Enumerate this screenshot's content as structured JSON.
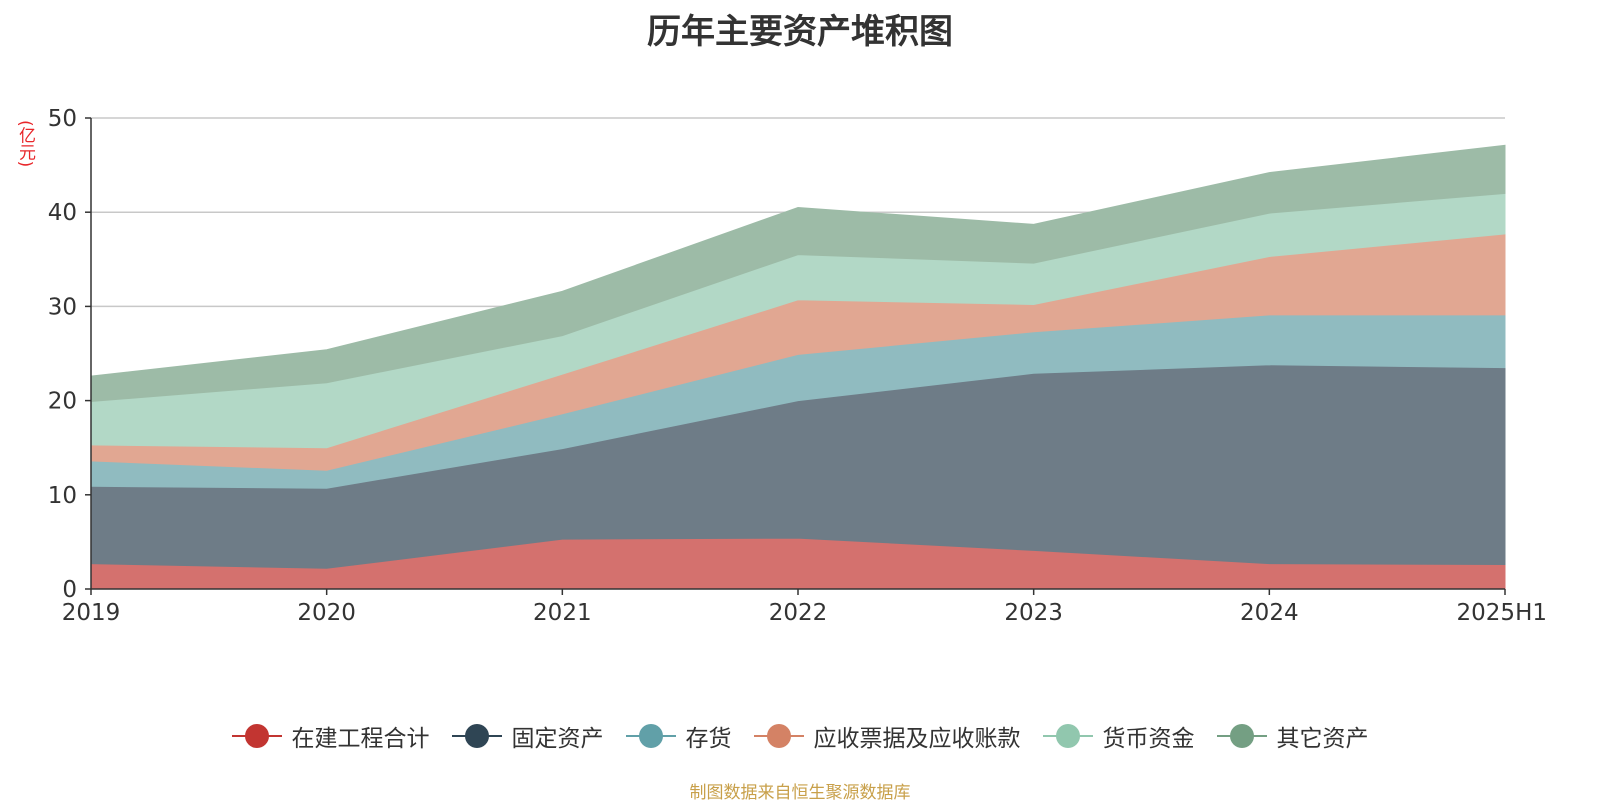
{
  "chart_data": {
    "type": "area",
    "stacked": true,
    "title": "历年主要资产堆积图",
    "ylabel": "(亿元)",
    "xlabel": "",
    "categories": [
      "2019",
      "2020",
      "2021",
      "2022",
      "2023",
      "2024",
      "2025H1"
    ],
    "ylim": [
      0,
      50
    ],
    "yticks": [
      0,
      10,
      20,
      30,
      40,
      50
    ],
    "grid": true,
    "legend_position": "bottom",
    "series": [
      {
        "name": "在建工程合计",
        "values": [
          2.7,
          2.2,
          5.3,
          5.4,
          4.1,
          2.7,
          2.6
        ],
        "color": "#c23531",
        "fill": "#d4716e"
      },
      {
        "name": "固定资产",
        "values": [
          8.2,
          8.5,
          9.6,
          14.6,
          18.8,
          21.1,
          20.9
        ],
        "color": "#2f4554",
        "fill": "#6e7c87"
      },
      {
        "name": "存货",
        "values": [
          2.7,
          1.9,
          3.7,
          4.9,
          4.4,
          5.3,
          5.6
        ],
        "color": "#61a0a8",
        "fill": "#90bbc0"
      },
      {
        "name": "应收票据及应收账款",
        "values": [
          1.7,
          2.4,
          4.2,
          5.8,
          2.9,
          6.2,
          8.6
        ],
        "color": "#d48265",
        "fill": "#e1a792"
      },
      {
        "name": "货币资金",
        "values": [
          4.6,
          6.9,
          4.1,
          4.8,
          4.4,
          4.6,
          4.3
        ],
        "color": "#91c7ae",
        "fill": "#b2d8c6"
      },
      {
        "name": "其它资产",
        "values": [
          2.7,
          3.5,
          4.7,
          5.0,
          4.1,
          4.3,
          5.1
        ],
        "color": "#749f83",
        "fill": "#9dbba7"
      }
    ]
  },
  "footer": {
    "source": "制图数据来自恒生聚源数据库"
  }
}
